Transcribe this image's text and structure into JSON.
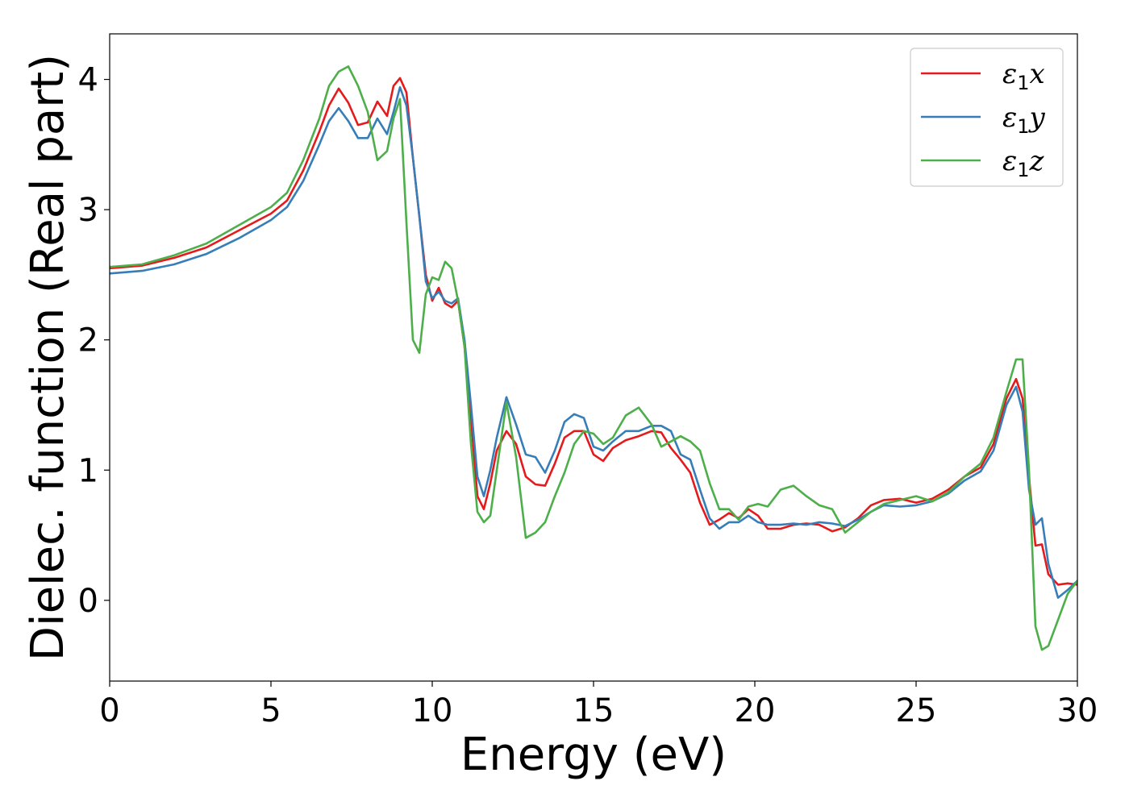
{
  "chart_data": {
    "type": "line",
    "xlabel": "Energy (eV)",
    "ylabel": "Dielec. function (Real part)",
    "xlim": [
      0,
      30
    ],
    "ylim": [
      -0.62,
      4.35
    ],
    "xticks": [
      0,
      5,
      10,
      15,
      20,
      25,
      30
    ],
    "yticks": [
      0,
      1,
      2,
      3,
      4
    ],
    "grid": false,
    "legend_position": "top-right",
    "series": [
      {
        "name": "ε₁x",
        "legend": {
          "base": "ε",
          "sub": "1",
          "var": "x"
        },
        "color": "#e41a1c",
        "x": [
          0,
          1,
          2,
          3,
          4,
          5,
          5.5,
          6,
          6.5,
          6.8,
          7.1,
          7.4,
          7.7,
          8.0,
          8.3,
          8.6,
          8.8,
          9.0,
          9.2,
          9.4,
          9.6,
          9.8,
          10.0,
          10.2,
          10.4,
          10.6,
          10.8,
          11.0,
          11.2,
          11.4,
          11.6,
          11.8,
          12.0,
          12.3,
          12.6,
          12.9,
          13.2,
          13.5,
          13.8,
          14.1,
          14.4,
          14.7,
          15.0,
          15.3,
          15.6,
          16.0,
          16.4,
          16.8,
          17.1,
          17.4,
          17.7,
          18.0,
          18.3,
          18.6,
          18.9,
          19.2,
          19.5,
          19.8,
          20.1,
          20.4,
          20.8,
          21.2,
          21.6,
          22.0,
          22.4,
          22.8,
          23.2,
          23.6,
          24.0,
          24.5,
          25.0,
          25.5,
          26.0,
          26.5,
          27.0,
          27.4,
          27.8,
          28.1,
          28.3,
          28.5,
          28.7,
          28.9,
          29.1,
          29.4,
          29.7,
          30.0
        ],
        "values": [
          2.55,
          2.57,
          2.63,
          2.71,
          2.84,
          2.97,
          3.07,
          3.3,
          3.6,
          3.8,
          3.93,
          3.82,
          3.65,
          3.67,
          3.83,
          3.72,
          3.95,
          4.01,
          3.9,
          3.4,
          2.95,
          2.5,
          2.3,
          2.4,
          2.28,
          2.25,
          2.3,
          1.95,
          1.4,
          0.8,
          0.7,
          0.9,
          1.15,
          1.3,
          1.2,
          0.95,
          0.89,
          0.88,
          1.05,
          1.25,
          1.3,
          1.3,
          1.12,
          1.07,
          1.17,
          1.23,
          1.26,
          1.3,
          1.29,
          1.17,
          1.08,
          0.98,
          0.75,
          0.58,
          0.62,
          0.67,
          0.63,
          0.7,
          0.65,
          0.55,
          0.55,
          0.58,
          0.59,
          0.58,
          0.53,
          0.56,
          0.63,
          0.73,
          0.77,
          0.78,
          0.75,
          0.78,
          0.85,
          0.95,
          1.02,
          1.2,
          1.55,
          1.7,
          1.55,
          0.95,
          0.42,
          0.43,
          0.2,
          0.12,
          0.13,
          0.12
        ]
      },
      {
        "name": "ε₁y",
        "legend": {
          "base": "ε",
          "sub": "1",
          "var": "y"
        },
        "color": "#377eb8",
        "x": [
          0,
          1,
          2,
          3,
          4,
          5,
          5.5,
          6,
          6.5,
          6.8,
          7.1,
          7.4,
          7.7,
          8.0,
          8.3,
          8.6,
          8.8,
          9.0,
          9.2,
          9.4,
          9.6,
          9.8,
          10.0,
          10.2,
          10.4,
          10.6,
          10.8,
          11.0,
          11.2,
          11.4,
          11.6,
          11.8,
          12.0,
          12.3,
          12.6,
          12.9,
          13.2,
          13.5,
          13.8,
          14.1,
          14.4,
          14.7,
          15.0,
          15.3,
          15.6,
          16.0,
          16.4,
          16.8,
          17.1,
          17.4,
          17.7,
          18.0,
          18.3,
          18.6,
          18.9,
          19.2,
          19.5,
          19.8,
          20.1,
          20.4,
          20.8,
          21.2,
          21.6,
          22.0,
          22.4,
          22.8,
          23.2,
          23.6,
          24.0,
          24.5,
          25.0,
          25.5,
          26.0,
          26.5,
          27.0,
          27.4,
          27.8,
          28.1,
          28.3,
          28.5,
          28.7,
          28.9,
          29.1,
          29.4,
          29.7,
          30.0
        ],
        "values": [
          2.51,
          2.53,
          2.58,
          2.66,
          2.78,
          2.92,
          3.02,
          3.22,
          3.5,
          3.68,
          3.78,
          3.68,
          3.55,
          3.55,
          3.7,
          3.58,
          3.75,
          3.94,
          3.8,
          3.4,
          2.95,
          2.45,
          2.32,
          2.37,
          2.3,
          2.28,
          2.32,
          2.0,
          1.5,
          0.95,
          0.8,
          1.0,
          1.25,
          1.56,
          1.35,
          1.12,
          1.1,
          0.98,
          1.15,
          1.37,
          1.43,
          1.4,
          1.18,
          1.15,
          1.22,
          1.3,
          1.3,
          1.34,
          1.34,
          1.3,
          1.12,
          1.08,
          0.85,
          0.63,
          0.55,
          0.6,
          0.6,
          0.65,
          0.6,
          0.58,
          0.58,
          0.59,
          0.58,
          0.6,
          0.59,
          0.57,
          0.62,
          0.68,
          0.73,
          0.72,
          0.73,
          0.76,
          0.82,
          0.92,
          0.99,
          1.15,
          1.5,
          1.64,
          1.45,
          0.85,
          0.58,
          0.63,
          0.28,
          0.02,
          0.08,
          0.15
        ]
      },
      {
        "name": "ε₁z",
        "legend": {
          "base": "ε",
          "sub": "1",
          "var": "z"
        },
        "color": "#4daf4a",
        "x": [
          0,
          1,
          2,
          3,
          4,
          5,
          5.5,
          6,
          6.5,
          6.8,
          7.1,
          7.4,
          7.7,
          8.0,
          8.3,
          8.6,
          8.8,
          9.0,
          9.2,
          9.4,
          9.6,
          9.8,
          10.0,
          10.2,
          10.4,
          10.6,
          10.8,
          11.0,
          11.2,
          11.4,
          11.6,
          11.8,
          12.0,
          12.3,
          12.6,
          12.9,
          13.2,
          13.5,
          13.8,
          14.1,
          14.4,
          14.7,
          15.0,
          15.3,
          15.6,
          16.0,
          16.4,
          16.8,
          17.1,
          17.4,
          17.7,
          18.0,
          18.3,
          18.6,
          18.9,
          19.2,
          19.5,
          19.8,
          20.1,
          20.4,
          20.8,
          21.2,
          21.6,
          22.0,
          22.4,
          22.8,
          23.2,
          23.6,
          24.0,
          24.5,
          25.0,
          25.5,
          26.0,
          26.5,
          27.0,
          27.4,
          27.8,
          28.1,
          28.3,
          28.5,
          28.7,
          28.9,
          29.1,
          29.4,
          29.7,
          30.0
        ],
        "values": [
          2.56,
          2.58,
          2.65,
          2.74,
          2.88,
          3.02,
          3.13,
          3.38,
          3.7,
          3.95,
          4.06,
          4.1,
          3.95,
          3.75,
          3.38,
          3.45,
          3.7,
          3.85,
          2.9,
          2.0,
          1.9,
          2.35,
          2.48,
          2.46,
          2.6,
          2.55,
          2.3,
          1.95,
          1.2,
          0.68,
          0.6,
          0.65,
          1.0,
          1.52,
          1.1,
          0.48,
          0.52,
          0.6,
          0.8,
          0.98,
          1.2,
          1.3,
          1.28,
          1.2,
          1.25,
          1.42,
          1.48,
          1.35,
          1.18,
          1.22,
          1.26,
          1.22,
          1.15,
          0.9,
          0.7,
          0.7,
          0.62,
          0.72,
          0.74,
          0.72,
          0.85,
          0.88,
          0.8,
          0.73,
          0.7,
          0.52,
          0.6,
          0.68,
          0.74,
          0.77,
          0.8,
          0.76,
          0.83,
          0.95,
          1.05,
          1.25,
          1.6,
          1.85,
          1.85,
          1.0,
          -0.2,
          -0.38,
          -0.35,
          -0.15,
          0.05,
          0.15
        ]
      }
    ]
  }
}
